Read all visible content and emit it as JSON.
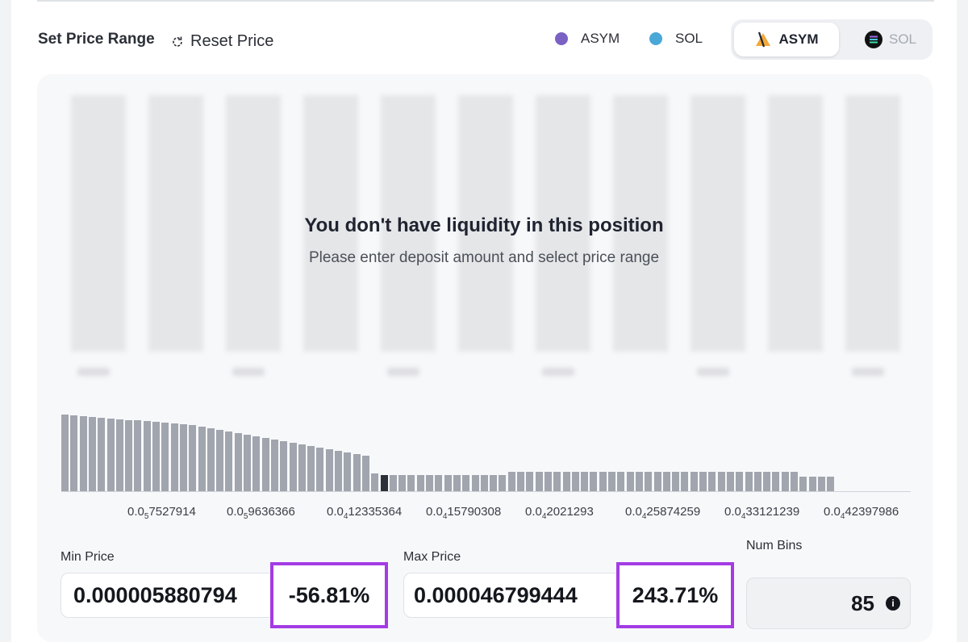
{
  "header": {
    "title": "Set Price Range",
    "reset_label": "Reset Price"
  },
  "legend": [
    {
      "label": "ASYM",
      "color": "#7b61c4"
    },
    {
      "label": "SOL",
      "color": "#4aa8d8"
    }
  ],
  "token_toggle": {
    "options": [
      {
        "label": "ASYM",
        "icon": "asym-logo-icon",
        "selected": true
      },
      {
        "label": "SOL",
        "icon": "sol-logo-icon",
        "selected": false
      }
    ]
  },
  "empty_state": {
    "title": "You don't have liquidity in this position",
    "subtitle": "Please enter deposit amount and select price range"
  },
  "chart_data": {
    "type": "bar",
    "active_index": 35,
    "values": [
      95,
      94,
      93,
      92,
      91,
      90,
      89,
      88,
      88,
      87,
      86,
      85,
      84,
      83,
      82,
      80,
      78,
      76,
      74,
      72,
      70,
      68,
      66,
      64,
      62,
      60,
      58,
      56,
      54,
      52,
      50,
      48,
      46,
      44,
      22,
      20,
      20,
      20,
      20,
      20,
      20,
      20,
      20,
      20,
      20,
      20,
      20,
      20,
      20,
      24,
      24,
      24,
      24,
      24,
      24,
      24,
      24,
      24,
      24,
      24,
      24,
      24,
      24,
      24,
      24,
      24,
      24,
      24,
      24,
      24,
      24,
      24,
      24,
      24,
      24,
      24,
      24,
      24,
      24,
      24,
      24,
      18,
      18,
      18,
      18
    ],
    "ticks": [
      {
        "lead": "0.0",
        "sub": "5",
        "rest": "7527914"
      },
      {
        "lead": "0.0",
        "sub": "5",
        "rest": "9636366"
      },
      {
        "lead": "0.0",
        "sub": "4",
        "rest": "12335364"
      },
      {
        "lead": "0.0",
        "sub": "4",
        "rest": "15790308"
      },
      {
        "lead": "0.0",
        "sub": "4",
        "rest": "2021293"
      },
      {
        "lead": "0.0",
        "sub": "4",
        "rest": "25874259"
      },
      {
        "lead": "0.0",
        "sub": "4",
        "rest": "33121239"
      },
      {
        "lead": "0.0",
        "sub": "4",
        "rest": "42397986"
      }
    ]
  },
  "min_price": {
    "label": "Min Price",
    "value": "0.000005880794",
    "percent": "-56.81%"
  },
  "max_price": {
    "label": "Max Price",
    "value": "0.000046799444",
    "percent": "243.71%"
  },
  "num_bins": {
    "label": "Num Bins",
    "value": "85"
  }
}
